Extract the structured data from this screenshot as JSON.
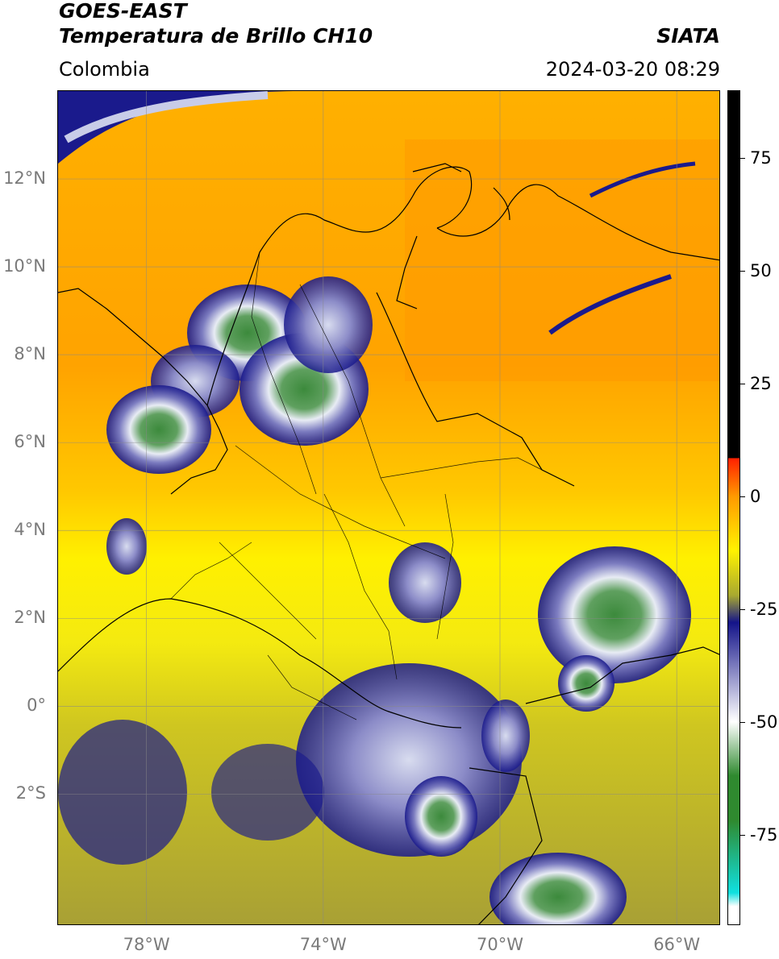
{
  "header": {
    "satellite": "GOES-EAST",
    "product": "Temperatura de Brillo CH10",
    "region": "Colombia",
    "organization": "SIATA",
    "datetime": "2024-03-20 08:29"
  },
  "map": {
    "lon_range": [
      -80,
      -65
    ],
    "lat_range": [
      -5,
      14
    ],
    "lat_ticks": [
      {
        "value": 12,
        "label": "12°N"
      },
      {
        "value": 10,
        "label": "10°N"
      },
      {
        "value": 8,
        "label": "8°N"
      },
      {
        "value": 6,
        "label": "6°N"
      },
      {
        "value": 4,
        "label": "4°N"
      },
      {
        "value": 2,
        "label": "2°N"
      },
      {
        "value": 0,
        "label": "0°"
      },
      {
        "value": -2,
        "label": "2°S"
      }
    ],
    "lon_ticks": [
      {
        "value": -78,
        "label": "78°W"
      },
      {
        "value": -74,
        "label": "74°W"
      },
      {
        "value": -70,
        "label": "70°W"
      },
      {
        "value": -66,
        "label": "66°W"
      }
    ],
    "grid": true
  },
  "colorbar": {
    "range": [
      -95,
      90
    ],
    "ticks": [
      {
        "value": 75,
        "label": "75"
      },
      {
        "value": 50,
        "label": "50"
      },
      {
        "value": 25,
        "label": "25"
      },
      {
        "value": 0,
        "label": "0"
      },
      {
        "value": -25,
        "label": "-25"
      },
      {
        "value": -50,
        "label": "-50"
      },
      {
        "value": -75,
        "label": "-75"
      }
    ],
    "colors": {
      "black": "#000000",
      "red": "#ff2000",
      "orange": "#ff9a00",
      "yellow": "#fff200",
      "olive": "#a8a830",
      "navy": "#14148a",
      "white": "#ffffff",
      "green": "#2f8a2f",
      "cyan": "#10e0e0"
    }
  }
}
